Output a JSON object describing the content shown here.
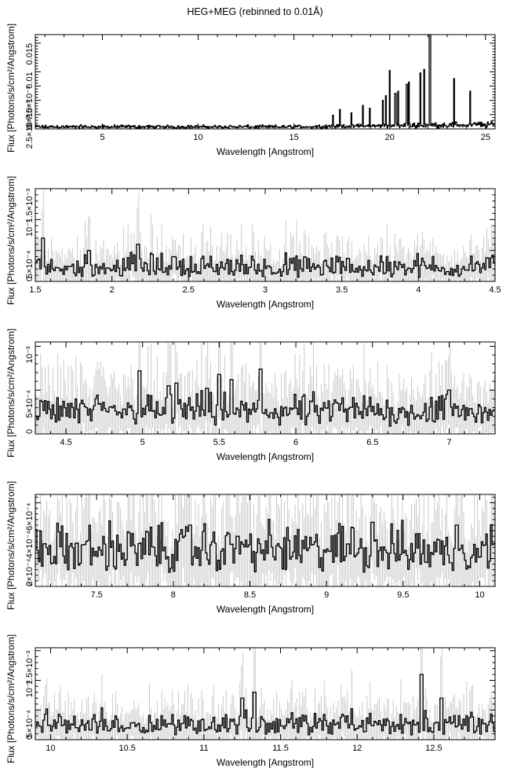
{
  "title": "HEG+MEG (rebinned to 0.01Å)",
  "chart_data": [
    {
      "type": "line",
      "style": "histogram",
      "xlabel": "Wavelength [Angstrom]",
      "ylabel": "Flux [Photons/s/cm²/Angstrom]",
      "xlim": [
        1.5,
        25.5
      ],
      "ylim": [
        0,
        0.0165
      ],
      "xticks": [
        {
          "v": 5,
          "label": "5"
        },
        {
          "v": 10,
          "label": "10"
        },
        {
          "v": 15,
          "label": "15"
        },
        {
          "v": 20,
          "label": "20"
        },
        {
          "v": 25,
          "label": "25"
        }
      ],
      "yticks": [
        {
          "v": 0,
          "label": "0"
        },
        {
          "v": 0.0025,
          "label": "2.5×10⁻³"
        },
        {
          "v": 0.005,
          "label": "5×10⁻³"
        },
        {
          "v": 0.0075,
          "label": "7.5×10⁻³"
        },
        {
          "v": 0.01,
          "label": "0.01"
        },
        {
          "v": 0.015,
          "label": "0.015"
        }
      ],
      "baseline": 0.0003,
      "noise": 0.0004,
      "errors": false,
      "lines": [
        [
          17.05,
          0.0024
        ],
        [
          17.4,
          0.0034
        ],
        [
          18.0,
          0.0028
        ],
        [
          18.6,
          0.0041
        ],
        [
          18.97,
          0.0036
        ],
        [
          19.65,
          0.005
        ],
        [
          19.8,
          0.0058
        ],
        [
          20.0,
          0.0102
        ],
        [
          20.3,
          0.0062
        ],
        [
          20.45,
          0.0066
        ],
        [
          20.9,
          0.0078
        ],
        [
          21.0,
          0.0082
        ],
        [
          21.6,
          0.0098
        ],
        [
          21.8,
          0.0104
        ],
        [
          22.1,
          0.0165
        ],
        [
          23.35,
          0.0088
        ],
        [
          24.2,
          0.0066
        ]
      ]
    },
    {
      "type": "line",
      "style": "histogram",
      "xlabel": "Wavelength [Angstrom]",
      "ylabel": "Flux [Photons/s/cm²/Angstrom]",
      "xlim": [
        1.5,
        4.5
      ],
      "ylim": [
        0,
        0.0015
      ],
      "xticks": [
        {
          "v": 1.5,
          "label": "1.5"
        },
        {
          "v": 2,
          "label": "2"
        },
        {
          "v": 2.5,
          "label": "2.5"
        },
        {
          "v": 3,
          "label": "3"
        },
        {
          "v": 3.5,
          "label": "3.5"
        },
        {
          "v": 4,
          "label": "4"
        },
        {
          "v": 4.5,
          "label": "4.5"
        }
      ],
      "yticks": [
        {
          "v": 0,
          "label": "0"
        },
        {
          "v": 0.0005,
          "label": "5×10⁻⁴"
        },
        {
          "v": 0.001,
          "label": "10⁻³"
        },
        {
          "v": 0.0015,
          "label": "1.5×10⁻³"
        }
      ],
      "baseline": 0.00018,
      "noise": 0.00028,
      "errors": true,
      "lines": [
        [
          1.55,
          0.0007
        ],
        [
          1.85,
          0.0005
        ],
        [
          2.17,
          0.0006
        ],
        [
          2.4,
          0.0004
        ]
      ]
    },
    {
      "type": "line",
      "style": "histogram",
      "xlabel": "Wavelength [Angstrom]",
      "ylabel": "Flux [Photons/s/cm²/Angstrom]",
      "xlim": [
        4.3,
        7.3
      ],
      "ylim": [
        0,
        0.00105
      ],
      "xticks": [
        {
          "v": 4.5,
          "label": "4.5"
        },
        {
          "v": 5,
          "label": "5"
        },
        {
          "v": 5.5,
          "label": "5.5"
        },
        {
          "v": 6,
          "label": "6"
        },
        {
          "v": 6.5,
          "label": "6.5"
        },
        {
          "v": 7,
          "label": "7"
        }
      ],
      "yticks": [
        {
          "v": 0,
          "label": "0"
        },
        {
          "v": 0.0005,
          "label": "5×10⁻⁴"
        },
        {
          "v": 0.001,
          "label": "10⁻³"
        }
      ],
      "baseline": 0.00024,
      "noise": 0.00022,
      "errors": true,
      "lines": [
        [
          4.98,
          0.00072
        ],
        [
          5.17,
          0.00055
        ],
        [
          5.22,
          0.00058
        ],
        [
          5.42,
          0.00052
        ],
        [
          5.5,
          0.00068
        ],
        [
          5.58,
          0.00062
        ],
        [
          5.77,
          0.00074
        ],
        [
          7.0,
          0.0005
        ]
      ]
    },
    {
      "type": "line",
      "style": "histogram",
      "xlabel": "Wavelength [Angstrom]",
      "ylabel": "Flux [Photons/s/cm²/Angstrom]",
      "xlim": [
        7.1,
        10.1
      ],
      "ylim": [
        0,
        0.00066
      ],
      "xticks": [
        {
          "v": 7.5,
          "label": "7.5"
        },
        {
          "v": 8,
          "label": "8"
        },
        {
          "v": 8.5,
          "label": "8.5"
        },
        {
          "v": 9,
          "label": "9"
        },
        {
          "v": 9.5,
          "label": "9.5"
        },
        {
          "v": 10,
          "label": "10"
        }
      ],
      "yticks": [
        {
          "v": 0,
          "label": "0"
        },
        {
          "v": 0.0002,
          "label": "2×10⁻⁴"
        },
        {
          "v": 0.0004,
          "label": "4×10⁻⁴"
        },
        {
          "v": 0.0006,
          "label": "6×10⁻⁴"
        }
      ],
      "baseline": 0.00026,
      "noise": 0.00018,
      "errors": true,
      "lines": [
        [
          8.11,
          0.00044
        ],
        [
          8.42,
          0.00036
        ],
        [
          9.17,
          0.00042
        ],
        [
          9.3,
          0.00046
        ],
        [
          9.85,
          0.00044
        ]
      ]
    },
    {
      "type": "line",
      "style": "histogram",
      "xlabel": "Wavelength [Angstrom]",
      "ylabel": "Flux [Photons/s/cm²/Angstrom]",
      "xlim": [
        9.9,
        12.9
      ],
      "ylim": [
        0,
        0.00155
      ],
      "xticks": [
        {
          "v": 10,
          "label": "10"
        },
        {
          "v": 10.5,
          "label": "10.5"
        },
        {
          "v": 11,
          "label": "11"
        },
        {
          "v": 11.5,
          "label": "11.5"
        },
        {
          "v": 12,
          "label": "12"
        },
        {
          "v": 12.5,
          "label": "12.5"
        }
      ],
      "yticks": [
        {
          "v": 0,
          "label": "0"
        },
        {
          "v": 0.0005,
          "label": "5×10⁻⁴"
        },
        {
          "v": 0.001,
          "label": "10⁻³"
        },
        {
          "v": 0.0015,
          "label": "1.5×10⁻³"
        }
      ],
      "baseline": 0.00022,
      "noise": 0.00028,
      "errors": true,
      "lines": [
        [
          11.25,
          0.0007
        ],
        [
          11.33,
          0.0008
        ],
        [
          12.42,
          0.0011
        ],
        [
          12.55,
          0.0007
        ]
      ]
    }
  ]
}
